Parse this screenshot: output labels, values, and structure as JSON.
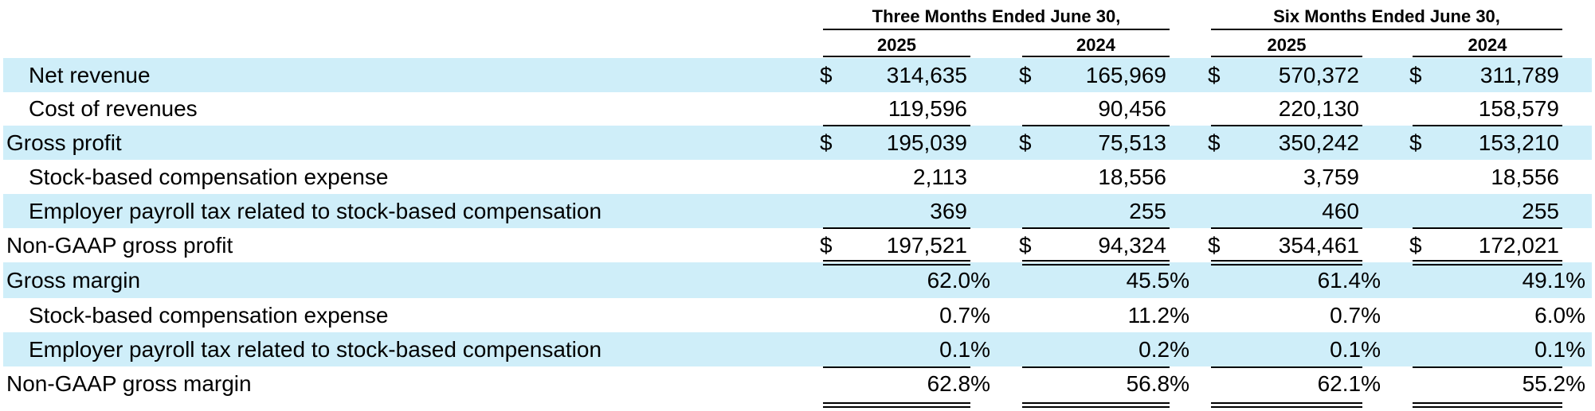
{
  "table": {
    "group_headers": [
      "Three Months Ended June 30,",
      "Six Months Ended June 30,"
    ],
    "year_headers": [
      "2025",
      "2024",
      "2025",
      "2024"
    ],
    "currency_symbol": "$",
    "rows": [
      {
        "label": "Net revenue",
        "values": [
          "314,635",
          "165,969",
          "570,372",
          "311,789"
        ]
      },
      {
        "label": "Cost of revenues",
        "values": [
          "119,596",
          "90,456",
          "220,130",
          "158,579"
        ]
      },
      {
        "label": "Gross profit",
        "values": [
          "195,039",
          "75,513",
          "350,242",
          "153,210"
        ]
      },
      {
        "label": "Stock-based compensation expense",
        "values": [
          "2,113",
          "18,556",
          "3,759",
          "18,556"
        ]
      },
      {
        "label": "Employer payroll tax related to stock-based compensation",
        "values": [
          "369",
          "255",
          "460",
          "255"
        ]
      },
      {
        "label": "Non-GAAP gross profit",
        "values": [
          "197,521",
          "94,324",
          "354,461",
          "172,021"
        ]
      },
      {
        "label": "Gross margin",
        "values": [
          "62.0%",
          "45.5%",
          "61.4%",
          "49.1%"
        ]
      },
      {
        "label": "Stock-based compensation expense",
        "values": [
          "0.7%",
          "11.2%",
          "0.7%",
          "6.0%"
        ]
      },
      {
        "label": "Employer payroll tax related to stock-based compensation",
        "values": [
          "0.1%",
          "0.2%",
          "0.1%",
          "0.1%"
        ]
      },
      {
        "label": "Non-GAAP gross margin",
        "values": [
          "62.8%",
          "56.8%",
          "62.1%",
          "55.2%"
        ]
      }
    ]
  }
}
